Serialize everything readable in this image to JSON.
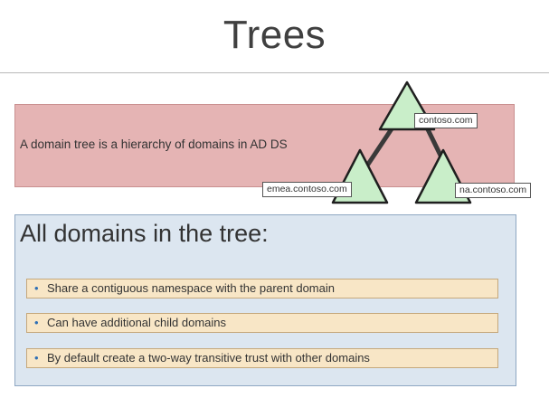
{
  "title": "Trees",
  "definition": "A domain tree is a hierarchy of domains in AD DS",
  "tree": {
    "root": "contoso.com",
    "left_child": "emea.contoso.com",
    "right_child": "na.contoso.com",
    "colors": {
      "triangle_fill": "#c9eec9",
      "triangle_stroke": "#1f1f1f",
      "connector": "#3a3a3a"
    }
  },
  "panel": {
    "heading": "All domains in the tree:",
    "bullets": [
      "Share a contiguous namespace with the parent domain",
      "Can have additional child domains",
      "By default create a two-way transitive trust with other domains"
    ]
  },
  "colors": {
    "definition_box": "#e5b4b4",
    "panel_box": "#dce6f0",
    "bullet_box": "#f8e6c6",
    "bullet_marker": "#2f6fb5"
  }
}
